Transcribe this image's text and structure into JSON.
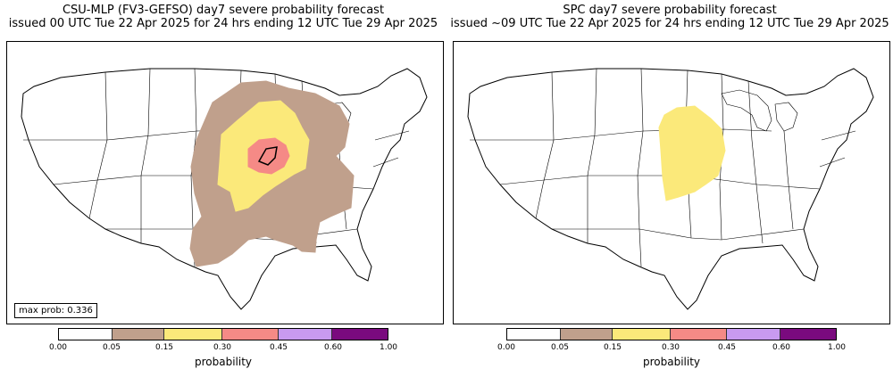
{
  "left_panel": {
    "title_line1": "CSU-MLP (FV3-GEFSO) day7 severe probability forecast",
    "title_line2": "issued 00 UTC Tue 22 Apr 2025 for 24 hrs ending 12 UTC Tue 29 Apr 2025",
    "max_prob_label": "max prob: 0.336"
  },
  "right_panel": {
    "title_line1": "SPC day7 severe probability forecast",
    "title_line2": "issued ~09 UTC Tue 22 Apr 2025 for 24 hrs ending 12 UTC Tue 29 Apr 2025"
  },
  "colorbar": {
    "label": "probability",
    "ticks": [
      "0.00",
      "0.05",
      "0.15",
      "0.30",
      "0.45",
      "0.60",
      "1.00"
    ],
    "colors": [
      "#ffffff",
      "#c0a08c",
      "#fbe97a",
      "#f58a86",
      "#c89af0",
      "#7a0a7e"
    ]
  },
  "map_colors": {
    "land": "#ffffff",
    "border": "#000000",
    "prob_05": "#c0a08c",
    "prob_15": "#fbe97a",
    "prob_30": "#f58a86"
  }
}
